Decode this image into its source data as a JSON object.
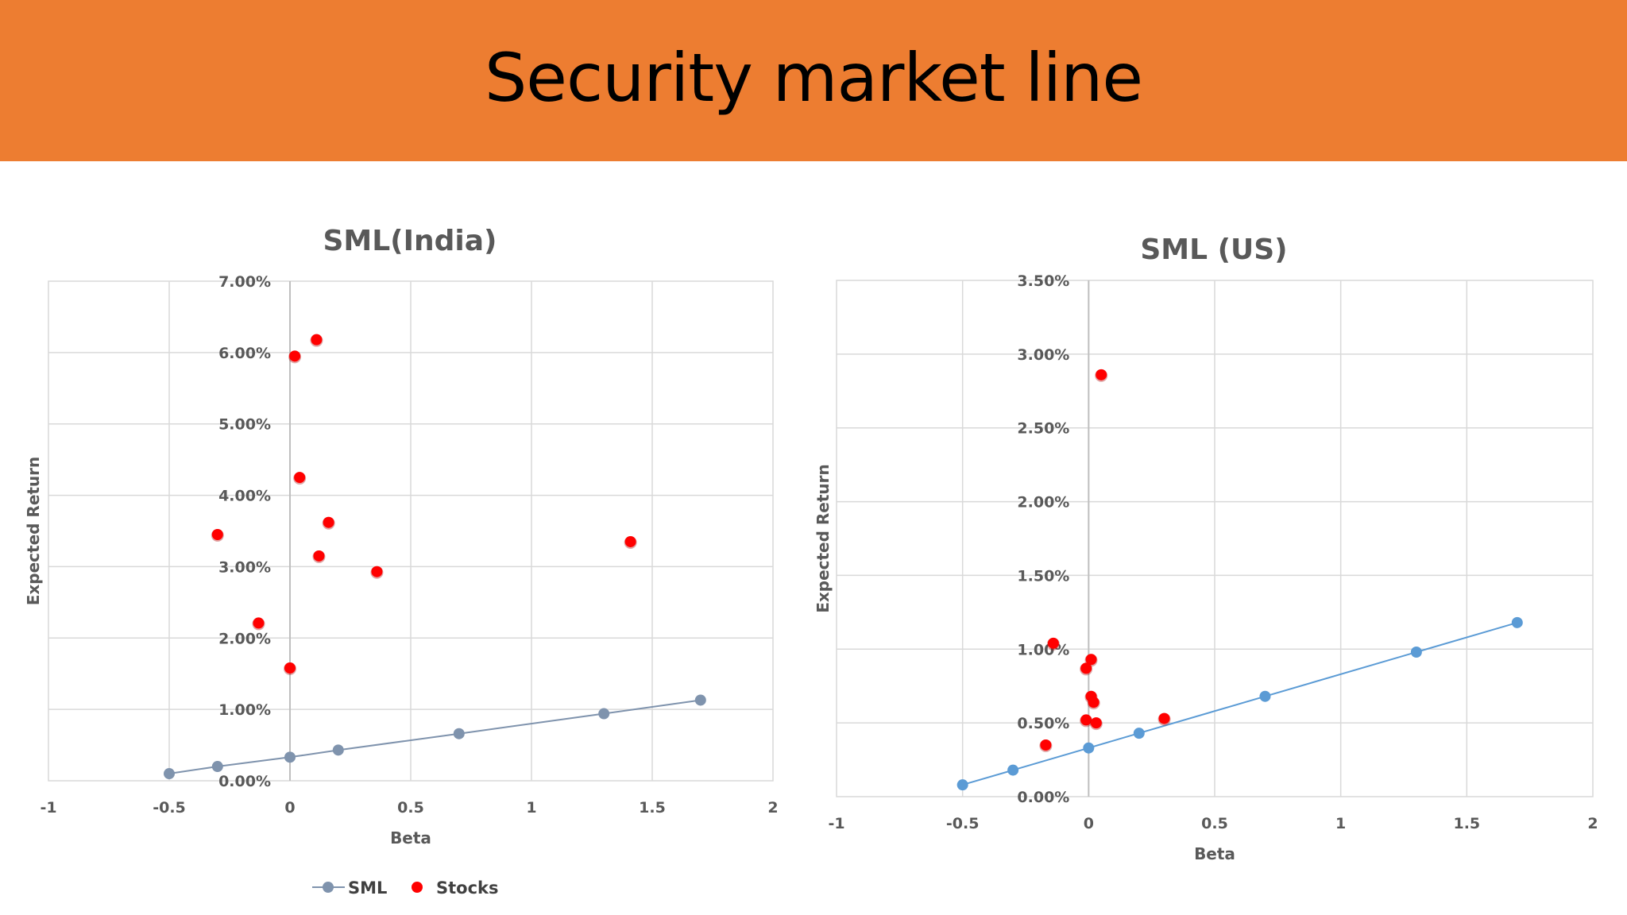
{
  "slide": {
    "title": "Security market line"
  },
  "chart_data": [
    {
      "type": "scatter",
      "title": "SML(India)",
      "xlabel": "Beta",
      "ylabel": "Expected Return",
      "xlim": [
        -1,
        2
      ],
      "ylim": [
        0,
        0.07
      ],
      "x_ticks": [
        "-1",
        "-0.5",
        "0",
        "0.5",
        "1",
        "1.5",
        "2"
      ],
      "y_ticks": [
        "0.00%",
        "1.00%",
        "2.00%",
        "3.00%",
        "4.00%",
        "5.00%",
        "6.00%",
        "7.00%"
      ],
      "grid": true,
      "legend": "bottom",
      "series": [
        {
          "name": "SML",
          "style": "line-markers",
          "color": "#7f93ad",
          "points": [
            [
              -0.5,
              0.001
            ],
            [
              -0.3,
              0.002
            ],
            [
              0,
              0.0033
            ],
            [
              0.2,
              0.0043
            ],
            [
              0.7,
              0.0066
            ],
            [
              1.3,
              0.0094
            ],
            [
              1.7,
              0.0113
            ]
          ]
        },
        {
          "name": "Stocks",
          "style": "markers",
          "color": "#ff0000",
          "points": [
            [
              0.11,
              0.0618
            ],
            [
              0.02,
              0.0595
            ],
            [
              0.04,
              0.0425
            ],
            [
              0.16,
              0.0362
            ],
            [
              -0.3,
              0.0345
            ],
            [
              1.41,
              0.0335
            ],
            [
              0.12,
              0.0315
            ],
            [
              0.36,
              0.0293
            ],
            [
              -0.13,
              0.0221
            ],
            [
              0,
              0.0158
            ]
          ]
        }
      ]
    },
    {
      "type": "scatter",
      "title": "SML (US)",
      "xlabel": "Beta",
      "ylabel": "Expected Return",
      "xlim": [
        -1,
        2
      ],
      "ylim": [
        0,
        0.035
      ],
      "x_ticks": [
        "-1",
        "-0.5",
        "0",
        "0.5",
        "1",
        "1.5",
        "2"
      ],
      "y_ticks": [
        "0.00%",
        "0.50%",
        "1.00%",
        "1.50%",
        "2.00%",
        "2.50%",
        "3.00%",
        "3.50%"
      ],
      "grid": true,
      "legend": "none",
      "series": [
        {
          "style": "line-markers",
          "color": "#5b9bd5",
          "points": [
            [
              -0.5,
              0.0008
            ],
            [
              -0.3,
              0.0018
            ],
            [
              0,
              0.0033
            ],
            [
              0.2,
              0.0043
            ],
            [
              0.7,
              0.0068
            ],
            [
              1.3,
              0.0098
            ],
            [
              1.7,
              0.0118
            ]
          ]
        },
        {
          "style": "markers",
          "color": "#ff0000",
          "points": [
            [
              0.05,
              0.0286
            ],
            [
              -0.14,
              0.0104
            ],
            [
              0.01,
              0.0093
            ],
            [
              -0.01,
              0.0087
            ],
            [
              0.01,
              0.0068
            ],
            [
              0.02,
              0.0064
            ],
            [
              -0.01,
              0.0052
            ],
            [
              0.03,
              0.005
            ],
            [
              0.3,
              0.0053
            ],
            [
              -0.17,
              0.0035
            ]
          ]
        }
      ]
    }
  ]
}
